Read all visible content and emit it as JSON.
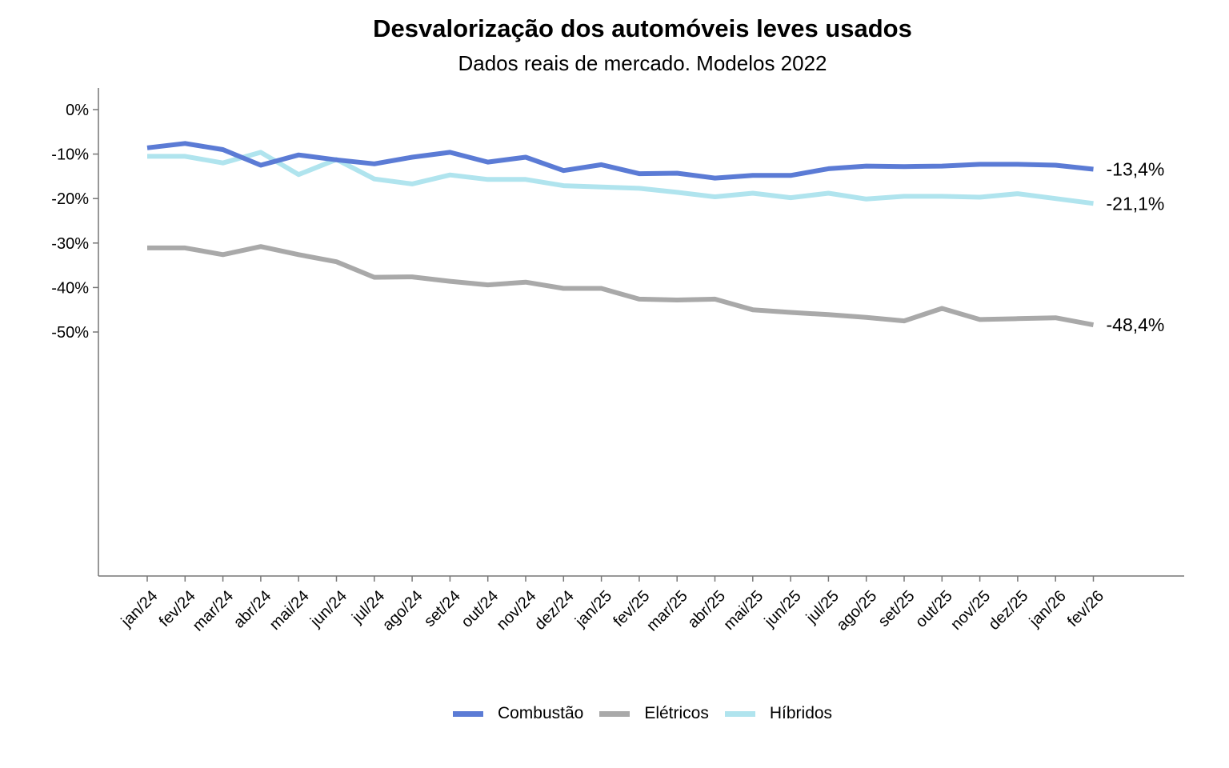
{
  "chart_data": {
    "type": "line",
    "title": "Desvalorização dos automóveis leves usados",
    "subtitle": "Dados reais de mercado. Modelos 2022",
    "xlabel": "",
    "ylabel": "",
    "x": [
      "jan/24",
      "fev/24",
      "mar/24",
      "abr/24",
      "mai/24",
      "jun/24",
      "jul/24",
      "ago/24",
      "set/24",
      "out/24",
      "nov/24",
      "dez/24",
      "jan/25",
      "fev/25",
      "mar/25",
      "abr/25",
      "mai/25",
      "jun/25",
      "jul/25",
      "ago/25",
      "set/25",
      "out/25",
      "nov/25",
      "dez/25",
      "jan/26",
      "fev/26"
    ],
    "ylim": [
      -52.5,
      2.5
    ],
    "yticks": [
      0,
      -10,
      -20,
      -30,
      -40,
      -50
    ],
    "ytick_labels": [
      "0%",
      "-10%",
      "-20%",
      "-30%",
      "-40%",
      "-50%"
    ],
    "grid": false,
    "legend_position": "bottom-center",
    "series": [
      {
        "name": "Combustão",
        "color": "#5B7BD5",
        "values": [
          -8.6,
          -7.6,
          -9.0,
          -12.5,
          -10.2,
          -11.3,
          -12.2,
          -10.7,
          -9.6,
          -11.8,
          -10.7,
          -13.7,
          -12.4,
          -14.4,
          -14.3,
          -15.4,
          -14.8,
          -14.8,
          -13.3,
          -12.7,
          -12.8,
          -12.7,
          -12.3,
          -12.3,
          -12.5,
          -13.4
        ],
        "end_label": "-13,4%"
      },
      {
        "name": "Elétricos",
        "color": "#A9A9A9",
        "values": [
          -31.1,
          -31.1,
          -32.6,
          -30.8,
          -32.6,
          -34.2,
          -37.7,
          -37.6,
          -38.6,
          -39.4,
          -38.8,
          -40.2,
          -40.2,
          -42.6,
          -42.8,
          -42.6,
          -45.0,
          -45.6,
          -46.1,
          -46.7,
          -47.5,
          -44.7,
          -47.2,
          -47.0,
          -46.8,
          -48.4
        ],
        "end_label": "-48,4%"
      },
      {
        "name": "Híbridos",
        "color": "#B0E4EE",
        "values": [
          -10.5,
          -10.5,
          -12.0,
          -9.6,
          -14.6,
          -11.2,
          -15.6,
          -16.7,
          -14.7,
          -15.7,
          -15.7,
          -17.1,
          -17.4,
          -17.7,
          -18.6,
          -19.6,
          -18.8,
          -19.8,
          -18.8,
          -20.1,
          -19.5,
          -19.5,
          -19.7,
          -18.9,
          -20.0,
          -21.1
        ],
        "end_label": "-21,1%"
      }
    ]
  }
}
